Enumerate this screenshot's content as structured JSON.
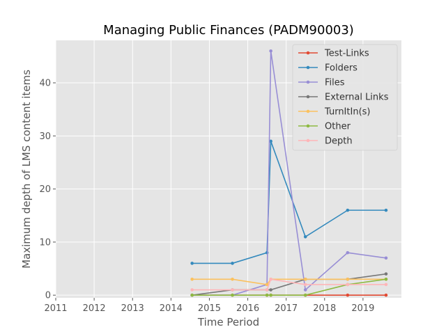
{
  "chart_data": {
    "type": "line",
    "title": "Managing Public Finances (PADM90003)",
    "xlabel": "Time Period",
    "ylabel": "Maximum depth of LMS content items",
    "xlim": [
      2011,
      2020
    ],
    "ylim": [
      0,
      48
    ],
    "xticks": [
      "2011",
      "2012",
      "2013",
      "2014",
      "2015",
      "2016",
      "2017",
      "2018",
      "2019"
    ],
    "yticks": [
      "0",
      "10",
      "20",
      "30",
      "40"
    ],
    "grid": true,
    "legend_position": "top-right",
    "series": [
      {
        "name": "Test-Links",
        "color": "#E24A33",
        "x": [
          2014.55,
          2015.6,
          2016.5,
          2016.6,
          2017.5,
          2018.6,
          2019.6
        ],
        "y": [
          0,
          0,
          0,
          0,
          0,
          0,
          0
        ]
      },
      {
        "name": "Folders",
        "color": "#348ABD",
        "x": [
          2014.55,
          2015.6,
          2016.5,
          2016.6,
          2017.5,
          2018.6,
          2019.6
        ],
        "y": [
          6,
          6,
          8,
          29,
          11,
          16,
          16
        ]
      },
      {
        "name": "Files",
        "color": "#988ED5",
        "x": [
          2014.55,
          2015.6,
          2016.5,
          2016.6,
          2017.5,
          2018.6,
          2019.6
        ],
        "y": [
          0,
          0,
          2,
          46,
          1,
          8,
          7
        ]
      },
      {
        "name": "External Links",
        "color": "#777777",
        "x": [
          2014.55,
          2015.6,
          2016.5,
          2016.6,
          2017.5,
          2018.6,
          2019.6
        ],
        "y": [
          0,
          1,
          1,
          1,
          3,
          3,
          4
        ]
      },
      {
        "name": "TurnItIn(s)",
        "color": "#FBC15E",
        "x": [
          2014.55,
          2015.6,
          2016.5,
          2016.6,
          2017.5,
          2018.6,
          2019.6
        ],
        "y": [
          3,
          3,
          2,
          3,
          3,
          3,
          3
        ]
      },
      {
        "name": "Other",
        "color": "#8EBA42",
        "x": [
          2014.55,
          2015.6,
          2016.5,
          2016.6,
          2017.5,
          2018.6,
          2019.6
        ],
        "y": [
          0,
          0,
          0,
          0,
          0,
          2,
          3
        ]
      },
      {
        "name": "Depth",
        "color": "#FFB5B8",
        "x": [
          2014.55,
          2015.6,
          2016.5,
          2016.6,
          2017.5,
          2018.6,
          2019.6
        ],
        "y": [
          1,
          1,
          1,
          3,
          2,
          2,
          2
        ]
      }
    ]
  }
}
